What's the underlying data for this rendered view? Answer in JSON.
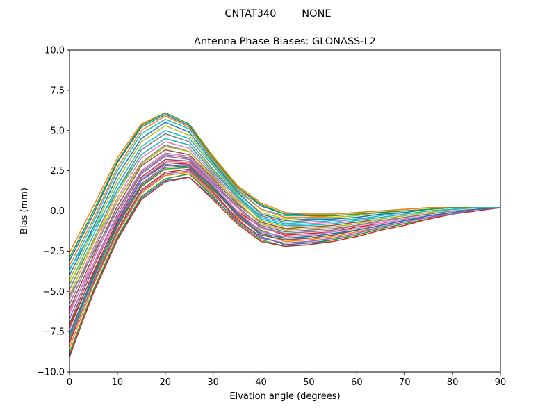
{
  "chart_data": {
    "type": "line",
    "suptitle": "CNTAT340        NONE",
    "title": "Antenna Phase Biases: GLONASS-L2",
    "xlabel": "Elvation angle (degrees)",
    "ylabel": "Bias (mm)",
    "xlim": [
      0,
      90
    ],
    "ylim": [
      -10,
      10
    ],
    "xticks": [
      0,
      10,
      20,
      30,
      40,
      50,
      60,
      70,
      80,
      90
    ],
    "yticks": [
      -10.0,
      -7.5,
      -5.0,
      -2.5,
      0.0,
      2.5,
      5.0,
      7.5,
      10.0
    ],
    "xtick_labels": [
      "0",
      "10",
      "20",
      "30",
      "40",
      "50",
      "60",
      "70",
      "80",
      "90"
    ],
    "ytick_labels": [
      "−10.0",
      "−7.5",
      "−5.0",
      "−2.5",
      "0.0",
      "2.5",
      "5.0",
      "7.5",
      "10.0"
    ],
    "grid": false,
    "legend": "none",
    "color_cycle": [
      "#1f77b4",
      "#ff7f0e",
      "#2ca02c",
      "#d62728",
      "#9467bd",
      "#8c564b",
      "#e377c2",
      "#7f7f7f",
      "#bcbd22",
      "#17becf"
    ],
    "x": [
      0,
      5,
      10,
      15,
      20,
      25,
      30,
      35,
      40,
      45,
      50,
      55,
      60,
      65,
      70,
      75,
      80,
      85,
      90
    ],
    "series": [
      {
        "values": [
          -9.1,
          -5.0,
          -1.7,
          0.8,
          1.9,
          2.1,
          0.8,
          -0.6,
          -1.6,
          -2.1,
          -2.0,
          -1.8,
          -1.5,
          -1.1,
          -0.8,
          -0.5,
          -0.2,
          0.1,
          0.2
        ]
      },
      {
        "values": [
          -8.5,
          -4.6,
          -1.4,
          1.1,
          2.2,
          2.4,
          1.0,
          -0.4,
          -1.4,
          -1.9,
          -1.8,
          -1.6,
          -1.3,
          -1.0,
          -0.7,
          -0.4,
          -0.2,
          0.1,
          0.2
        ]
      },
      {
        "values": [
          -7.9,
          -4.2,
          -1.0,
          1.5,
          2.6,
          2.7,
          1.3,
          -0.2,
          -1.2,
          -1.7,
          -1.6,
          -1.4,
          -1.2,
          -0.9,
          -0.6,
          -0.4,
          -0.1,
          0.1,
          0.2
        ]
      },
      {
        "values": [
          -7.3,
          -3.8,
          -0.6,
          1.9,
          3.0,
          2.9,
          1.5,
          0.0,
          -1.0,
          -1.5,
          -1.4,
          -1.3,
          -1.0,
          -0.8,
          -0.5,
          -0.3,
          -0.1,
          0.1,
          0.2
        ]
      },
      {
        "values": [
          -6.7,
          -3.3,
          -0.2,
          2.3,
          3.4,
          3.2,
          1.7,
          0.2,
          -0.9,
          -1.3,
          -1.2,
          -1.1,
          -0.9,
          -0.7,
          -0.4,
          -0.2,
          0.0,
          0.1,
          0.2
        ]
      },
      {
        "values": [
          -6.1,
          -2.8,
          0.3,
          2.8,
          3.8,
          3.5,
          2.0,
          0.4,
          -0.7,
          -1.1,
          -1.0,
          -0.9,
          -0.7,
          -0.5,
          -0.3,
          -0.1,
          0.1,
          0.2,
          0.2
        ]
      },
      {
        "values": [
          -5.5,
          -2.3,
          0.8,
          3.3,
          4.3,
          3.9,
          2.3,
          0.7,
          -0.5,
          -0.9,
          -0.8,
          -0.7,
          -0.5,
          -0.4,
          -0.2,
          0.0,
          0.1,
          0.2,
          0.2
        ]
      },
      {
        "values": [
          -4.9,
          -1.8,
          1.3,
          3.8,
          4.8,
          4.3,
          2.6,
          0.9,
          -0.3,
          -0.7,
          -0.6,
          -0.5,
          -0.4,
          -0.2,
          -0.1,
          0.1,
          0.2,
          0.2,
          0.2
        ]
      },
      {
        "values": [
          -4.3,
          -1.2,
          1.9,
          4.3,
          5.3,
          4.7,
          2.9,
          1.1,
          -0.1,
          -0.5,
          -0.4,
          -0.4,
          -0.3,
          -0.1,
          0.0,
          0.1,
          0.2,
          0.2,
          0.2
        ]
      },
      {
        "values": [
          -3.7,
          -0.7,
          2.5,
          4.8,
          5.7,
          5.1,
          3.1,
          1.3,
          0.1,
          -0.3,
          -0.3,
          -0.3,
          -0.2,
          -0.1,
          0.0,
          0.1,
          0.2,
          0.2,
          0.2
        ]
      },
      {
        "values": [
          -3.1,
          -0.2,
          3.0,
          5.2,
          6.0,
          5.3,
          3.3,
          1.5,
          0.3,
          -0.2,
          -0.2,
          -0.2,
          -0.1,
          0.0,
          0.1,
          0.2,
          0.2,
          0.2,
          0.2
        ]
      },
      {
        "values": [
          -2.6,
          0.3,
          3.3,
          5.4,
          6.1,
          5.4,
          3.4,
          1.6,
          0.5,
          -0.1,
          -0.2,
          -0.2,
          -0.1,
          0.0,
          0.1,
          0.2,
          0.2,
          0.2,
          0.2
        ]
      },
      {
        "values": [
          -8.8,
          -4.9,
          -1.6,
          0.9,
          2.0,
          2.3,
          0.9,
          -0.7,
          -1.8,
          -2.2,
          -2.1,
          -1.8,
          -1.5,
          -1.1,
          -0.8,
          -0.5,
          -0.2,
          0.1,
          0.2
        ]
      },
      {
        "values": [
          -8.2,
          -4.4,
          -1.2,
          1.3,
          2.4,
          2.6,
          1.2,
          -0.5,
          -1.7,
          -2.0,
          -1.9,
          -1.7,
          -1.4,
          -1.0,
          -0.7,
          -0.4,
          -0.2,
          0.1,
          0.2
        ]
      },
      {
        "values": [
          -7.6,
          -4.0,
          -0.8,
          1.7,
          2.8,
          2.9,
          1.4,
          -0.3,
          -1.5,
          -1.8,
          -1.7,
          -1.5,
          -1.2,
          -0.9,
          -0.6,
          -0.4,
          -0.1,
          0.1,
          0.2
        ]
      },
      {
        "values": [
          -7.0,
          -3.5,
          -0.4,
          2.1,
          3.2,
          3.1,
          1.6,
          -0.1,
          -1.3,
          -1.6,
          -1.5,
          -1.3,
          -1.1,
          -0.8,
          -0.5,
          -0.3,
          -0.1,
          0.1,
          0.2
        ]
      },
      {
        "values": [
          -6.4,
          -3.0,
          0.1,
          2.5,
          3.6,
          3.4,
          1.9,
          0.2,
          -1.1,
          -1.4,
          -1.3,
          -1.2,
          -0.9,
          -0.7,
          -0.4,
          -0.2,
          0.0,
          0.1,
          0.2
        ]
      },
      {
        "values": [
          -5.8,
          -2.5,
          0.6,
          3.0,
          4.1,
          3.7,
          2.2,
          0.5,
          -0.8,
          -1.2,
          -1.1,
          -1.0,
          -0.8,
          -0.5,
          -0.3,
          -0.1,
          0.1,
          0.2,
          0.2
        ]
      },
      {
        "values": [
          -5.2,
          -2.0,
          1.1,
          3.5,
          4.5,
          4.1,
          2.5,
          0.8,
          -0.6,
          -1.0,
          -0.9,
          -0.8,
          -0.6,
          -0.4,
          -0.2,
          0.0,
          0.1,
          0.2,
          0.2
        ]
      },
      {
        "values": [
          -4.6,
          -1.5,
          1.6,
          4.0,
          5.0,
          4.5,
          2.8,
          1.0,
          -0.4,
          -0.8,
          -0.7,
          -0.6,
          -0.5,
          -0.3,
          -0.1,
          0.1,
          0.2,
          0.2,
          0.2
        ]
      },
      {
        "values": [
          -4.0,
          -1.0,
          2.2,
          4.5,
          5.5,
          4.9,
          3.0,
          1.2,
          -0.2,
          -0.6,
          -0.5,
          -0.5,
          -0.4,
          -0.2,
          -0.1,
          0.1,
          0.2,
          0.2,
          0.2
        ]
      },
      {
        "values": [
          -3.4,
          -0.5,
          2.7,
          5.0,
          5.9,
          5.2,
          3.2,
          1.4,
          0.1,
          -0.4,
          -0.4,
          -0.3,
          -0.2,
          -0.1,
          0.0,
          0.1,
          0.2,
          0.2,
          0.2
        ]
      },
      {
        "values": [
          -2.9,
          0.0,
          3.1,
          5.3,
          6.1,
          5.4,
          3.3,
          1.5,
          0.4,
          -0.2,
          -0.3,
          -0.3,
          -0.2,
          -0.1,
          0.0,
          0.1,
          0.2,
          0.2,
          0.2
        ]
      },
      {
        "values": [
          -9.0,
          -5.1,
          -1.8,
          0.7,
          1.8,
          2.1,
          0.7,
          -0.8,
          -1.9,
          -2.2,
          -2.1,
          -1.9,
          -1.6,
          -1.2,
          -0.9,
          -0.5,
          -0.2,
          0.0,
          0.2
        ]
      },
      {
        "values": [
          -8.0,
          -4.5,
          -1.3,
          1.2,
          2.3,
          2.5,
          1.1,
          -0.6,
          -1.7,
          -2.0,
          -1.9,
          -1.7,
          -1.4,
          -1.0,
          -0.7,
          -0.4,
          -0.2,
          0.1,
          0.2
        ]
      },
      {
        "values": [
          -7.1,
          -3.9,
          -0.9,
          1.6,
          2.7,
          2.8,
          1.4,
          -0.3,
          -1.5,
          -1.8,
          -1.7,
          -1.5,
          -1.2,
          -0.9,
          -0.6,
          -0.3,
          -0.1,
          0.1,
          0.2
        ]
      },
      {
        "values": [
          -6.2,
          -3.3,
          -0.5,
          2.0,
          3.1,
          3.0,
          1.6,
          0.0,
          -1.3,
          -1.6,
          -1.5,
          -1.3,
          -1.1,
          -0.8,
          -0.5,
          -0.3,
          -0.1,
          0.1,
          0.2
        ]
      },
      {
        "values": [
          -5.3,
          -2.6,
          0.0,
          2.4,
          3.5,
          3.3,
          1.8,
          0.3,
          -1.0,
          -1.4,
          -1.3,
          -1.2,
          -0.9,
          -0.6,
          -0.4,
          -0.2,
          0.0,
          0.1,
          0.2
        ]
      },
      {
        "values": [
          -4.5,
          -1.9,
          0.6,
          2.9,
          4.0,
          3.7,
          2.1,
          0.6,
          -0.8,
          -1.2,
          -1.1,
          -1.0,
          -0.8,
          -0.5,
          -0.3,
          -0.1,
          0.1,
          0.2,
          0.2
        ]
      },
      {
        "values": [
          -3.6,
          -1.2,
          1.3,
          3.5,
          4.5,
          4.1,
          2.4,
          0.9,
          -0.5,
          -0.9,
          -0.9,
          -0.8,
          -0.6,
          -0.4,
          -0.2,
          0.0,
          0.1,
          0.2,
          0.2
        ]
      },
      {
        "values": [
          -7.7,
          -4.1,
          -0.7,
          1.9,
          2.9,
          2.7,
          1.5,
          -0.2,
          -1.4,
          -1.7,
          -1.6,
          -1.4,
          -1.2,
          -0.9,
          -0.6,
          -0.3,
          -0.1,
          0.1,
          0.2
        ]
      }
    ]
  }
}
